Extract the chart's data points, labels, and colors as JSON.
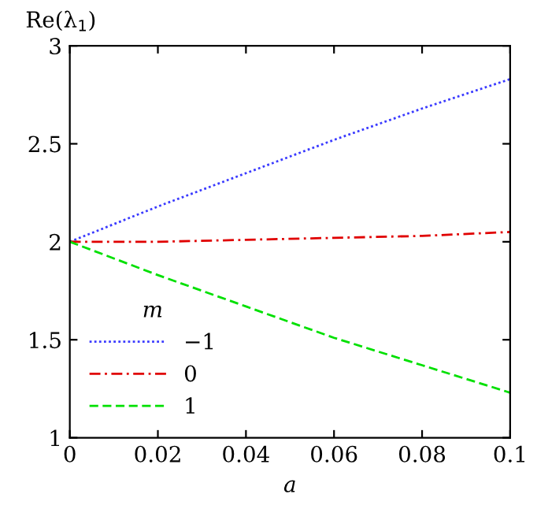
{
  "chart_data": {
    "type": "line",
    "xlabel": "a",
    "ylabel": "Re(λ$_{1}$)",
    "legend_title": "m",
    "xlim": [
      0,
      0.1
    ],
    "ylim": [
      1,
      3
    ],
    "xticks": [
      0,
      0.02,
      0.04,
      0.06,
      0.08,
      0.1
    ],
    "yticks": [
      1,
      1.5,
      2,
      2.5,
      3
    ],
    "grid": false,
    "legend": "bottom left",
    "marker": "none",
    "series": [
      {
        "name": "−1",
        "color": "#3a3aff",
        "line_style": "dotted",
        "x": [
          0,
          0.02,
          0.04,
          0.06,
          0.08,
          0.1
        ],
        "values": [
          2,
          2.18,
          2.35,
          2.52,
          2.68,
          2.83
        ]
      },
      {
        "name": "0",
        "color": "#e00000",
        "line_style": "dashdot",
        "x": [
          0,
          0.02,
          0.04,
          0.06,
          0.08,
          0.1
        ],
        "values": [
          2,
          2.0,
          2.01,
          2.02,
          2.03,
          2.05
        ]
      },
      {
        "name": "1",
        "color": "#00e000",
        "line_style": "dashed",
        "x": [
          0,
          0.02,
          0.04,
          0.06,
          0.08,
          0.1
        ],
        "values": [
          2,
          1.83,
          1.67,
          1.51,
          1.37,
          1.23
        ]
      }
    ]
  }
}
